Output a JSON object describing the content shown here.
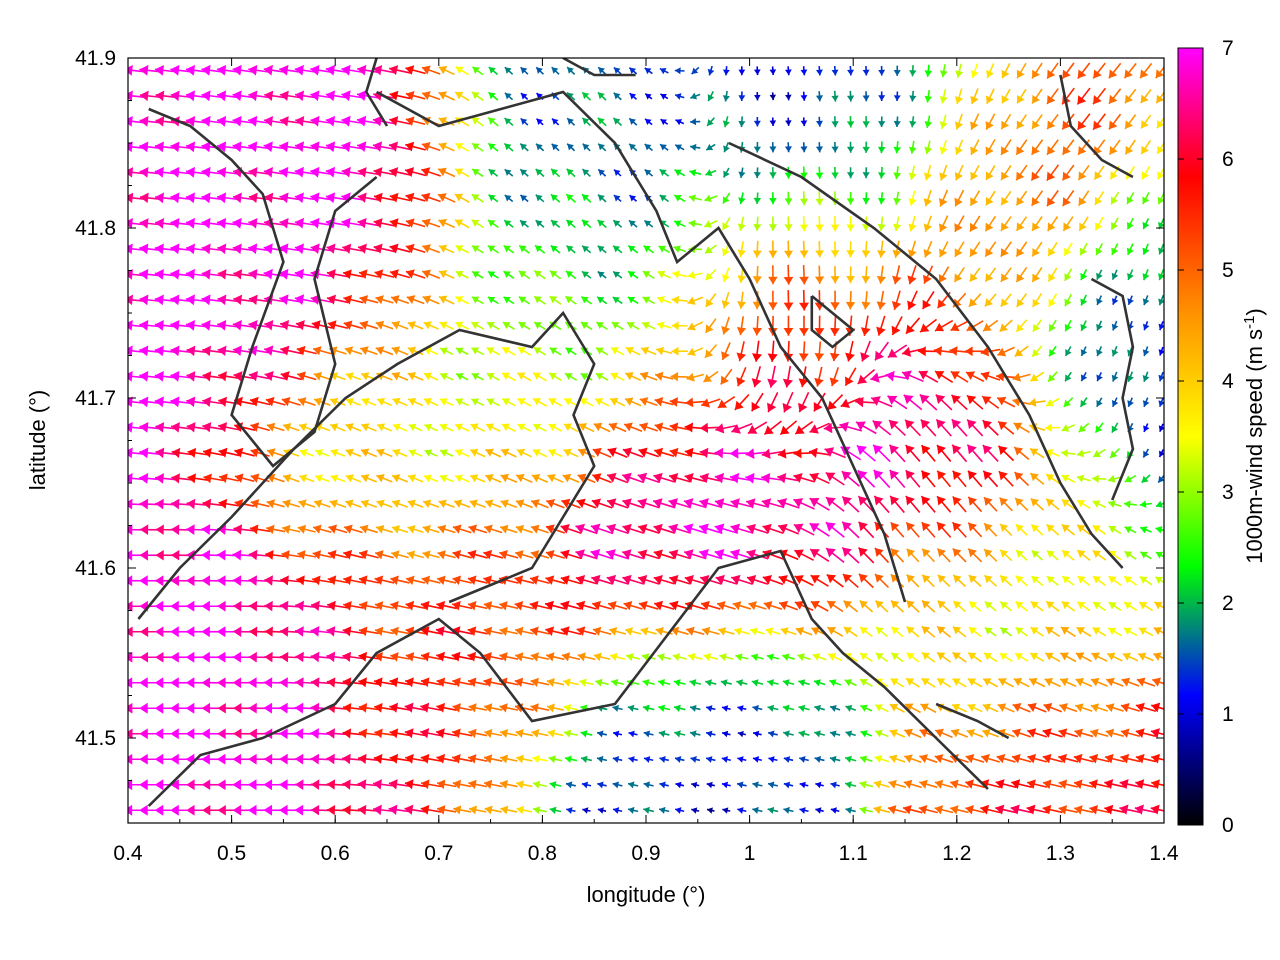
{
  "chart_data": {
    "type": "vector-field",
    "xlabel": "longitude (°)",
    "ylabel": "latitude (°)",
    "xlim": [
      0.4,
      1.4
    ],
    "ylim": [
      41.45,
      41.9
    ],
    "x_ticks": [
      "0.4",
      "0.5",
      "0.6",
      "0.7",
      "0.8",
      "0.9",
      "1",
      "1.1",
      "1.2",
      "1.3",
      "1.4"
    ],
    "y_ticks": [
      "41.5",
      "41.6",
      "41.7",
      "41.8",
      "41.9"
    ],
    "colorbar": {
      "label": "1000m-wind speed (m s-1)",
      "label_main": "1000m-wind speed (m s",
      "label_sup": "-1",
      "label_end": ")",
      "range": [
        0,
        7
      ],
      "ticks": [
        "0",
        "1",
        "2",
        "3",
        "4",
        "5",
        "6",
        "7"
      ],
      "colors": [
        "#000000",
        "#0000ff",
        "#00ff00",
        "#ffff00",
        "#ff8c00",
        "#ff0000",
        "#ff00ff"
      ]
    },
    "wind_field": {
      "grid_spacing_deg": 0.015,
      "speed_max": 7,
      "centers": [
        {
          "lon": 0.45,
          "lat": 41.78,
          "speed": 7,
          "u": -1.0,
          "v": 0.1
        },
        {
          "lon": 0.58,
          "lat": 41.8,
          "speed": 7,
          "u": -1.0,
          "v": 0.15
        },
        {
          "lon": 0.5,
          "lat": 41.52,
          "speed": 7,
          "u": -1.0,
          "v": 0.0
        },
        {
          "lon": 0.93,
          "lat": 41.63,
          "speed": 7,
          "u": -0.95,
          "v": 0.3
        },
        {
          "lon": 1.17,
          "lat": 41.67,
          "speed": 7,
          "u": -0.55,
          "v": 0.8
        },
        {
          "lon": 0.85,
          "lat": 41.81,
          "speed": 1.5,
          "u": -0.6,
          "v": 0.6
        },
        {
          "lon": 0.95,
          "lat": 41.49,
          "speed": 1.2,
          "u": -0.9,
          "v": 0.2
        },
        {
          "lon": 1.1,
          "lat": 41.86,
          "speed": 1.0,
          "u": 0.1,
          "v": -1.0
        },
        {
          "lon": 1.37,
          "lat": 41.74,
          "speed": 1.0,
          "u": -0.3,
          "v": -0.9
        },
        {
          "lon": 0.68,
          "lat": 41.69,
          "speed": 3.5,
          "u": -0.9,
          "v": 0.4
        },
        {
          "lon": 0.82,
          "lat": 41.73,
          "speed": 3.0,
          "u": -0.8,
          "v": 0.5
        },
        {
          "lon": 1.25,
          "lat": 41.58,
          "speed": 3.0,
          "u": -0.7,
          "v": 0.6
        },
        {
          "lon": 1.3,
          "lat": 41.48,
          "speed": 5.8,
          "u": -1.0,
          "v": 0.2
        },
        {
          "lon": 1.25,
          "lat": 41.82,
          "speed": 5.5,
          "u": -0.6,
          "v": -0.7
        },
        {
          "lon": 1.05,
          "lat": 41.74,
          "speed": 5.5,
          "u": 0.1,
          "v": -1.0
        },
        {
          "lon": 0.7,
          "lat": 41.56,
          "speed": 5.5,
          "u": -1.0,
          "v": 0.2
        }
      ]
    },
    "contours": [
      [
        [
          0.42,
          41.46
        ],
        [
          0.47,
          41.49
        ],
        [
          0.53,
          41.5
        ],
        [
          0.6,
          41.52
        ],
        [
          0.64,
          41.55
        ],
        [
          0.7,
          41.57
        ],
        [
          0.74,
          41.55
        ],
        [
          0.79,
          41.51
        ],
        [
          0.87,
          41.52
        ],
        [
          0.92,
          41.56
        ],
        [
          0.97,
          41.6
        ],
        [
          1.03,
          41.61
        ],
        [
          1.06,
          41.57
        ],
        [
          1.09,
          41.55
        ],
        [
          1.13,
          41.53
        ],
        [
          1.18,
          41.5
        ],
        [
          1.23,
          41.47
        ]
      ],
      [
        [
          0.41,
          41.57
        ],
        [
          0.45,
          41.6
        ],
        [
          0.5,
          41.63
        ],
        [
          0.56,
          41.67
        ],
        [
          0.61,
          41.7
        ],
        [
          0.66,
          41.72
        ],
        [
          0.72,
          41.74
        ],
        [
          0.79,
          41.73
        ],
        [
          0.82,
          41.75
        ],
        [
          0.85,
          41.72
        ],
        [
          0.83,
          41.69
        ],
        [
          0.85,
          41.66
        ],
        [
          0.82,
          41.63
        ],
        [
          0.79,
          41.6
        ],
        [
          0.75,
          41.59
        ],
        [
          0.71,
          41.58
        ]
      ],
      [
        [
          0.42,
          41.87
        ],
        [
          0.46,
          41.86
        ],
        [
          0.5,
          41.84
        ],
        [
          0.53,
          41.82
        ],
        [
          0.55,
          41.78
        ],
        [
          0.52,
          41.73
        ],
        [
          0.5,
          41.69
        ],
        [
          0.54,
          41.66
        ],
        [
          0.58,
          41.68
        ],
        [
          0.6,
          41.72
        ],
        [
          0.58,
          41.77
        ],
        [
          0.6,
          41.81
        ],
        [
          0.64,
          41.83
        ]
      ],
      [
        [
          0.64,
          41.88
        ],
        [
          0.7,
          41.86
        ],
        [
          0.76,
          41.87
        ],
        [
          0.82,
          41.88
        ],
        [
          0.87,
          41.85
        ],
        [
          0.91,
          41.81
        ],
        [
          0.93,
          41.78
        ],
        [
          0.97,
          41.8
        ],
        [
          1.0,
          41.77
        ],
        [
          1.03,
          41.73
        ],
        [
          1.07,
          41.7
        ],
        [
          1.1,
          41.66
        ],
        [
          1.13,
          41.62
        ],
        [
          1.15,
          41.58
        ]
      ],
      [
        [
          0.98,
          41.85
        ],
        [
          1.05,
          41.83
        ],
        [
          1.12,
          41.8
        ],
        [
          1.18,
          41.77
        ],
        [
          1.23,
          41.73
        ],
        [
          1.27,
          41.69
        ],
        [
          1.3,
          41.65
        ],
        [
          1.33,
          41.62
        ],
        [
          1.36,
          41.6
        ]
      ],
      [
        [
          1.06,
          41.76
        ],
        [
          1.08,
          41.75
        ],
        [
          1.1,
          41.74
        ],
        [
          1.08,
          41.73
        ],
        [
          1.06,
          41.74
        ],
        [
          1.06,
          41.76
        ]
      ],
      [
        [
          1.3,
          41.89
        ],
        [
          1.31,
          41.86
        ],
        [
          1.34,
          41.84
        ],
        [
          1.37,
          41.83
        ]
      ],
      [
        [
          1.33,
          41.77
        ],
        [
          1.36,
          41.76
        ],
        [
          1.37,
          41.73
        ],
        [
          1.36,
          41.7
        ],
        [
          1.37,
          41.67
        ],
        [
          1.35,
          41.64
        ]
      ],
      [
        [
          0.82,
          41.9
        ],
        [
          0.85,
          41.89
        ],
        [
          0.89,
          41.89
        ]
      ],
      [
        [
          1.18,
          41.52
        ],
        [
          1.22,
          41.51
        ],
        [
          1.25,
          41.5
        ]
      ],
      [
        [
          0.64,
          41.9
        ],
        [
          0.63,
          41.88
        ],
        [
          0.65,
          41.86
        ]
      ]
    ]
  }
}
